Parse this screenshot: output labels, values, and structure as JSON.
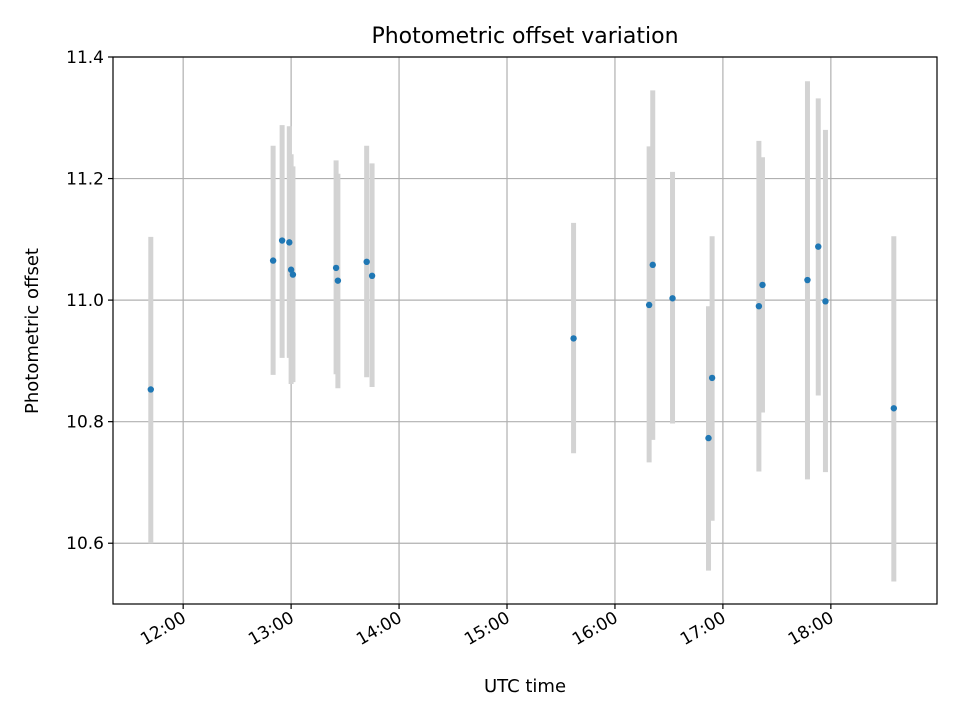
{
  "chart_data": {
    "type": "scatter",
    "title": "Photometric offset variation",
    "xlabel": "UTC time",
    "ylabel": "Photometric offset",
    "x_ticks": [
      "12:00",
      "13:00",
      "14:00",
      "15:00",
      "16:00",
      "17:00",
      "18:00"
    ],
    "y_ticks": [
      "10.6",
      "10.8",
      "11.0",
      "11.2",
      "11.4"
    ],
    "xlim": [
      "11:21",
      "18:59"
    ],
    "ylim": [
      10.5,
      11.4
    ],
    "grid": true,
    "point_color": "#1f77b4",
    "errorbar_color": "#d3d3d3",
    "points": [
      {
        "x": "11:42",
        "y": 10.853,
        "lo": 10.6,
        "hi": 11.104
      },
      {
        "x": "12:50",
        "y": 11.065,
        "lo": 10.877,
        "hi": 11.254
      },
      {
        "x": "12:55",
        "y": 11.098,
        "lo": 10.905,
        "hi": 11.288
      },
      {
        "x": "12:59",
        "y": 11.095,
        "lo": 10.905,
        "hi": 11.286
      },
      {
        "x": "13:00",
        "y": 11.05,
        "lo": 10.862,
        "hi": 11.24
      },
      {
        "x": "13:01",
        "y": 11.042,
        "lo": 10.865,
        "hi": 11.22
      },
      {
        "x": "13:25",
        "y": 11.053,
        "lo": 10.878,
        "hi": 11.23
      },
      {
        "x": "13:26",
        "y": 11.032,
        "lo": 10.855,
        "hi": 11.208
      },
      {
        "x": "13:42",
        "y": 11.063,
        "lo": 10.873,
        "hi": 11.254
      },
      {
        "x": "13:45",
        "y": 11.04,
        "lo": 10.857,
        "hi": 11.225
      },
      {
        "x": "15:37",
        "y": 10.937,
        "lo": 10.748,
        "hi": 11.127
      },
      {
        "x": "16:19",
        "y": 10.992,
        "lo": 10.733,
        "hi": 11.253
      },
      {
        "x": "16:21",
        "y": 11.058,
        "lo": 10.77,
        "hi": 11.345
      },
      {
        "x": "16:32",
        "y": 11.003,
        "lo": 10.797,
        "hi": 11.211
      },
      {
        "x": "16:52",
        "y": 10.773,
        "lo": 10.555,
        "hi": 10.99
      },
      {
        "x": "16:54",
        "y": 10.872,
        "lo": 10.637,
        "hi": 11.105
      },
      {
        "x": "17:20",
        "y": 10.99,
        "lo": 10.718,
        "hi": 11.262
      },
      {
        "x": "17:22",
        "y": 11.025,
        "lo": 10.815,
        "hi": 11.235
      },
      {
        "x": "17:47",
        "y": 11.033,
        "lo": 10.705,
        "hi": 11.36
      },
      {
        "x": "17:53",
        "y": 11.088,
        "lo": 10.843,
        "hi": 11.332
      },
      {
        "x": "17:57",
        "y": 10.998,
        "lo": 10.717,
        "hi": 11.28
      },
      {
        "x": "18:35",
        "y": 10.822,
        "lo": 10.537,
        "hi": 11.105
      }
    ]
  }
}
